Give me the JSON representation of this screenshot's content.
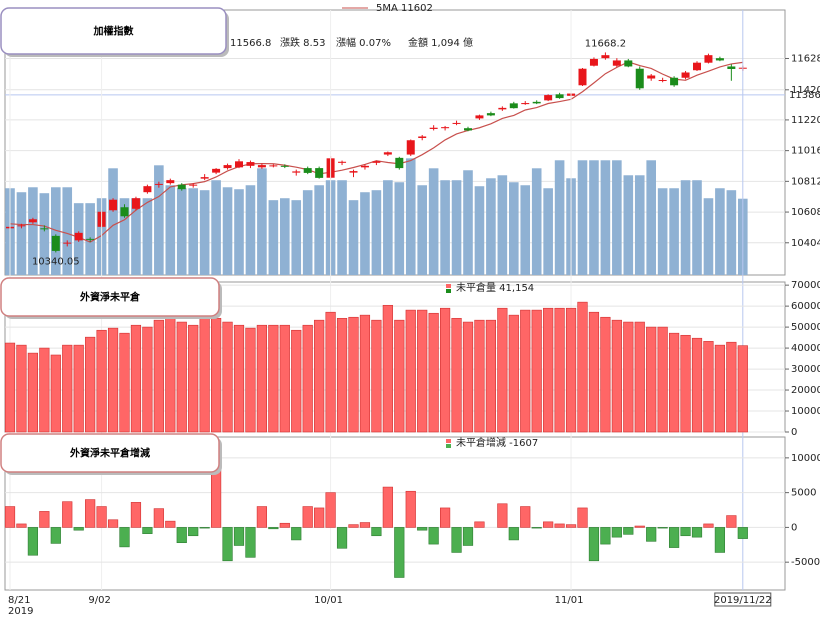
{
  "chart_data": [
    {
      "type": "candlestick",
      "title": "加權指數",
      "header": {
        "close": "11566.8",
        "change": "漲跌 8.53",
        "change_pct": "漲幅 0.07%",
        "amount": "金額 1,094 億"
      },
      "categories": [
        "8/21",
        null,
        null,
        null,
        null,
        null,
        null,
        null,
        "9/02",
        null,
        null,
        null,
        null,
        null,
        null,
        null,
        null,
        null,
        null,
        null,
        null,
        null,
        null,
        null,
        null,
        null,
        null,
        null,
        "10/01",
        null,
        null,
        null,
        null,
        null,
        null,
        null,
        null,
        null,
        null,
        null,
        null,
        null,
        null,
        null,
        null,
        null,
        null,
        null,
        null,
        "11/01",
        null,
        null,
        null,
        null,
        null,
        null,
        null,
        null,
        null,
        null,
        null,
        null,
        null,
        null,
        "2019/11/22"
      ],
      "year_label": "2019",
      "open": [
        10500,
        10515,
        10540,
        10500,
        10450,
        10400,
        10420,
        10430,
        10510,
        10620,
        10640,
        10630,
        10740,
        10790,
        10800,
        10790,
        10785,
        10830,
        10870,
        10900,
        10905,
        10915,
        10905,
        10915,
        10915,
        10870,
        10900,
        10900,
        10836,
        10935,
        10870,
        10905,
        10935,
        10990,
        10968,
        10990,
        11100,
        11160,
        11165,
        11195,
        11165,
        11230,
        11265,
        11290,
        11330,
        11325,
        11340,
        11350,
        11390,
        11380,
        11450,
        11580,
        11630,
        11580,
        11615,
        11560,
        11495,
        11480,
        11500,
        11500,
        11550,
        11600,
        11630,
        11575,
        11560
      ],
      "high": [
        10520,
        10530,
        10570,
        10520,
        10460,
        10420,
        10480,
        10440,
        10620,
        10700,
        10660,
        10710,
        10790,
        10810,
        10830,
        10800,
        10800,
        10860,
        10900,
        10930,
        10960,
        10950,
        10930,
        10925,
        10925,
        10890,
        10910,
        10910,
        10980,
        10950,
        10890,
        10925,
        10950,
        11010,
        10975,
        11090,
        11120,
        11185,
        11180,
        11215,
        11175,
        11255,
        11275,
        11310,
        11340,
        11345,
        11350,
        11390,
        11400,
        11400,
        11565,
        11635,
        11668.2,
        11630,
        11625,
        11575,
        11525,
        11500,
        11510,
        11545,
        11610,
        11660,
        11640,
        11590,
        11580
      ],
      "low": [
        10480,
        10500,
        10530,
        10480,
        10340.05,
        10380,
        10410,
        10410,
        10500,
        10610,
        10570,
        10620,
        10730,
        10770,
        10790,
        10750,
        10770,
        10820,
        10860,
        10890,
        10900,
        10900,
        10895,
        10905,
        10900,
        10850,
        10860,
        10830,
        10830,
        10920,
        10840,
        10890,
        10920,
        10980,
        10890,
        10980,
        11085,
        11150,
        11150,
        11185,
        11145,
        11220,
        11245,
        11280,
        11295,
        11320,
        11325,
        11345,
        11360,
        11360,
        11445,
        11575,
        11620,
        11570,
        11570,
        11420,
        11480,
        11470,
        11440,
        11490,
        11545,
        11595,
        11610,
        11480,
        11545
      ],
      "close": [
        10510,
        10520,
        10560,
        10495,
        10350,
        10405,
        10470,
        10425,
        10610,
        10690,
        10580,
        10700,
        10780,
        10795,
        10820,
        10760,
        10790,
        10840,
        10895,
        10920,
        10945,
        10940,
        10920,
        10918,
        10912,
        10878,
        10868,
        10835,
        10965,
        10942,
        10880,
        10915,
        10945,
        11005,
        10900,
        11085,
        11110,
        11168,
        11172,
        11200,
        11150,
        11250,
        11250,
        11300,
        11298,
        11332,
        11330,
        11385,
        11365,
        11395,
        11560,
        11625,
        11650,
        11615,
        11575,
        11430,
        11515,
        11485,
        11450,
        11535,
        11600,
        11650,
        11615,
        11558.27,
        11566.8
      ],
      "up_color": "#e8161b",
      "down_color": "#1b8c1b",
      "ma": {
        "name": "5MA 11602",
        "color": "#c8504d",
        "values": [
          10530,
          10525,
          10525,
          10515,
          10487,
          10466,
          10440,
          10409,
          10452,
          10520,
          10557,
          10621,
          10672,
          10711,
          10775,
          10789,
          10797,
          10810,
          10841,
          10881,
          10910,
          10928,
          10930,
          10929,
          10919,
          10906,
          10890,
          10862,
          10872,
          10886,
          10904,
          10924,
          10949,
          10937,
          10929,
          10950,
          10989,
          11034,
          11087,
          11127,
          11150,
          11168,
          11194,
          11230,
          11250,
          11286,
          11302,
          11329,
          11342,
          11357,
          11407,
          11466,
          11527,
          11569,
          11605,
          11581,
          11562,
          11524,
          11491,
          11483,
          11517,
          11544,
          11572,
          11592,
          11602
        ]
      },
      "volume": {
        "color": "#8fb1d3",
        "axis": "y2",
        "values": [
          1244,
          1187,
          1258,
          1173,
          1258,
          1258,
          1030,
          1030,
          1101,
          1530,
          1101,
          1101,
          1101,
          1573,
          1287,
          1244,
          1244,
          1216,
          1359,
          1258,
          1230,
          1287,
          1530,
          1073,
          1101,
          1073,
          1216,
          1287,
          1359,
          1359,
          1073,
          1187,
          1216,
          1359,
          1330,
          1673,
          1287,
          1530,
          1359,
          1359,
          1502,
          1273,
          1387,
          1430,
          1330,
          1287,
          1530,
          1244,
          1645,
          1387,
          1645,
          1645,
          1645,
          1645,
          1430,
          1430,
          1645,
          1244,
          1244,
          1359,
          1359,
          1101,
          1244,
          1216,
          1094
        ]
      },
      "annotations": [
        {
          "text": "11668.2",
          "at": "high",
          "color": "#f2a0bd"
        },
        {
          "text": "10340.05",
          "at": "low",
          "color": "#9cc4c4"
        }
      ],
      "marker": 11386,
      "marker_color": "#cc0000",
      "ylim": [
        10190,
        11950
      ],
      "yticks": [
        10404,
        10608,
        10812,
        11016,
        11220,
        11420,
        11628
      ],
      "y2lim": [
        0,
        3800
      ],
      "grid": true
    },
    {
      "type": "bar",
      "title": "外資淨未平倉",
      "legend": "未平倉量 41,154",
      "color": "#ff6666",
      "values": [
        42400,
        41400,
        37600,
        40000,
        36700,
        41400,
        41400,
        45200,
        48500,
        49500,
        47100,
        50900,
        50000,
        53300,
        54200,
        52400,
        50900,
        55700,
        54200,
        52400,
        50900,
        49500,
        50900,
        50900,
        50900,
        48500,
        50900,
        53300,
        57100,
        54200,
        54700,
        55700,
        53300,
        60400,
        53300,
        58100,
        58100,
        56600,
        59000,
        54200,
        52400,
        53300,
        53300,
        59000,
        55700,
        58100,
        58100,
        59000,
        59000,
        59000,
        61900,
        57100,
        54700,
        53300,
        52400,
        52400,
        50000,
        50000,
        47100,
        46100,
        44700,
        43200,
        41400,
        42800,
        41154
      ],
      "ylim": [
        0,
        71500
      ],
      "yticks": [
        0,
        10000,
        20000,
        30000,
        40000,
        50000,
        60000,
        70000
      ],
      "grid": true
    },
    {
      "type": "bar",
      "title": "外資淨未平倉增減",
      "legend": "未平倉增減 -1607",
      "color": "#ff6666",
      "negative_color": "#4caf50",
      "values": [
        3000,
        500,
        -4000,
        2300,
        -2300,
        3700,
        -400,
        4000,
        3000,
        1100,
        -2800,
        3600,
        -900,
        2700,
        900,
        -2200,
        -1200,
        -100,
        9500,
        -4800,
        -2600,
        -4300,
        3000,
        -200,
        600,
        -1800,
        3000,
        2800,
        5000,
        -3000,
        400,
        700,
        -1200,
        5800,
        -7200,
        5200,
        -400,
        -2400,
        2800,
        -3600,
        -2600,
        800,
        0,
        3400,
        -1800,
        3000,
        -100,
        800,
        500,
        400,
        2800,
        -4800,
        -2400,
        -1400,
        -1000,
        200,
        -2000,
        -100,
        -2900,
        -1200,
        -1400,
        500,
        -3600,
        1700,
        -1607
      ],
      "ylim": [
        -9000,
        13000
      ],
      "yticks": [
        -5000,
        0,
        5000,
        10000
      ],
      "grid": true
    }
  ]
}
